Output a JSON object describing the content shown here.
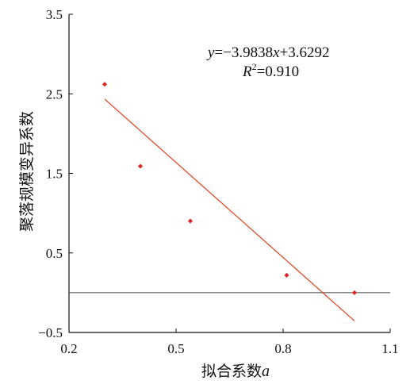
{
  "chart_data": {
    "type": "scatter",
    "xlabel_text": "拟合系数",
    "xlabel_var": "a",
    "ylabel": "聚落规模变异系数",
    "xlim": [
      0.2,
      1.1
    ],
    "ylim": [
      -0.5,
      3.5
    ],
    "x_ticks": [
      "0.2",
      "0.5",
      "0.8",
      "1.1"
    ],
    "y_ticks": [
      "-0.5",
      "0.5",
      "1.5",
      "2.5",
      "3.5"
    ],
    "points": [
      {
        "x": 0.3,
        "y": 2.62
      },
      {
        "x": 0.4,
        "y": 1.59
      },
      {
        "x": 0.54,
        "y": 0.9
      },
      {
        "x": 0.81,
        "y": 0.22
      },
      {
        "x": 1.0,
        "y": 0.0
      }
    ],
    "trendline": {
      "slope": -3.9838,
      "intercept": 3.6292,
      "x_range": [
        0.3,
        1.0
      ],
      "color": "#e0401e"
    },
    "point_color": "#e0201e",
    "reference_line_y": 0,
    "grid": false,
    "equation": {
      "y_var": "y",
      "eq_body": "=−3.9838",
      "x_var": "x",
      "eq_tail": "+3.6292",
      "r_var": "R",
      "r_sup": "2",
      "r_value": "=0.910"
    }
  }
}
